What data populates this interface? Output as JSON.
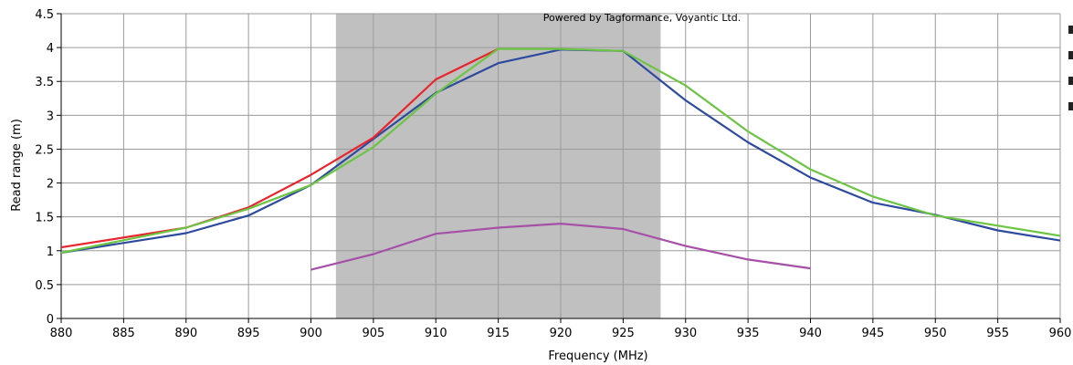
{
  "chart_data": {
    "type": "line",
    "title": "",
    "xlabel": "Frequency (MHz)",
    "ylabel": "Read range (m)",
    "watermark": "Powered by Tagformance, Voyantic Ltd.",
    "xlim": [
      880,
      960
    ],
    "ylim": [
      0,
      4.5
    ],
    "x_ticks": [
      880,
      885,
      890,
      895,
      900,
      905,
      910,
      915,
      920,
      925,
      930,
      935,
      940,
      945,
      950,
      955,
      960
    ],
    "y_ticks": [
      0,
      0.5,
      1,
      1.5,
      2,
      2.5,
      3,
      3.5,
      4,
      4.5
    ],
    "x_tick_labels": [
      "880",
      "885",
      "890",
      "895",
      "900",
      "905",
      "910",
      "915",
      "920",
      "925",
      "930",
      "935",
      "940",
      "945",
      "950",
      "955",
      "960"
    ],
    "y_tick_labels": [
      "0",
      "0.5",
      "1",
      "1.5",
      "2",
      "2.5",
      "3",
      "3.5",
      "4",
      "4.5"
    ],
    "grid": true,
    "highlight_band": {
      "x_start": 902,
      "x_end": 928,
      "color": "#c0c0c0"
    },
    "series": [
      {
        "color": "#2e4a9e",
        "x": [
          880,
          890,
          895,
          900,
          905,
          910,
          915,
          920,
          925,
          930,
          935,
          940,
          945,
          950,
          955,
          960
        ],
        "y": [
          0.97,
          1.26,
          1.52,
          1.97,
          2.65,
          3.33,
          3.77,
          3.97,
          3.95,
          3.22,
          2.6,
          2.08,
          1.71,
          1.53,
          1.3,
          1.15
        ]
      },
      {
        "color": "#e8242c",
        "x": [
          880,
          890,
          895,
          900,
          905,
          910,
          915
        ],
        "y": [
          1.05,
          1.34,
          1.64,
          2.12,
          2.67,
          3.53,
          3.98
        ]
      },
      {
        "color": "#6cc443",
        "x": [
          880,
          890,
          895,
          900,
          905,
          910,
          915,
          920,
          925,
          930,
          935,
          940,
          945,
          950,
          955,
          960
        ],
        "y": [
          0.97,
          1.34,
          1.62,
          1.97,
          2.53,
          3.32,
          3.98,
          3.98,
          3.95,
          3.44,
          2.76,
          2.2,
          1.8,
          1.52,
          1.37,
          1.22
        ]
      },
      {
        "color": "#a650a8",
        "x": [
          900,
          905,
          910,
          915,
          920,
          925,
          930,
          935,
          940
        ],
        "y": [
          0.72,
          0.95,
          1.25,
          1.34,
          1.4,
          1.32,
          1.07,
          0.87,
          0.74
        ]
      }
    ]
  }
}
